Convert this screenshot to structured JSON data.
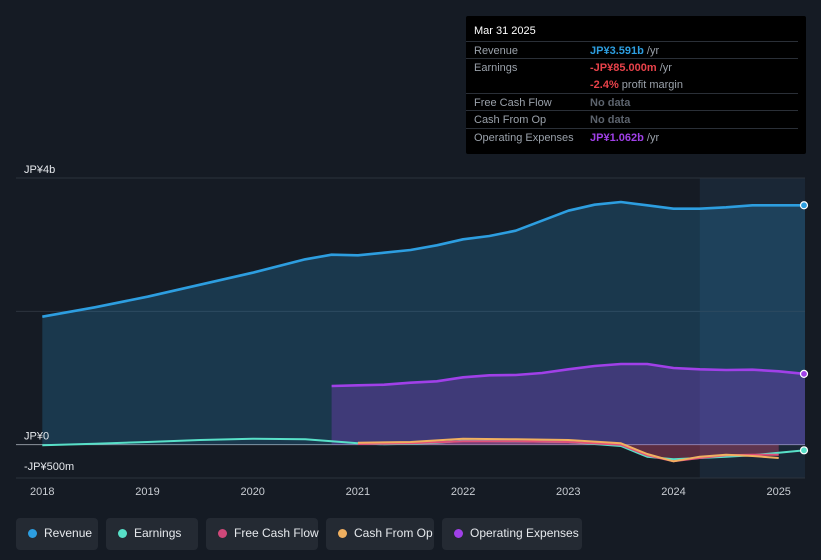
{
  "chart_data": {
    "type": "area",
    "y_unit_labels": {
      "top": "JP¥4b",
      "zero": "JP¥0",
      "bottom": "-JP¥500m"
    },
    "ylim": [
      -500,
      4000
    ],
    "xlim": [
      2017.75,
      2025.25
    ],
    "x_ticks": [
      "2018",
      "2019",
      "2020",
      "2021",
      "2022",
      "2023",
      "2024",
      "2025"
    ],
    "highlight_from": 2024.25,
    "series": [
      {
        "name": "Revenue",
        "color": "#2d9ee0",
        "points": [
          [
            2018,
            1920
          ],
          [
            2018.5,
            2060
          ],
          [
            2019,
            2220
          ],
          [
            2019.5,
            2400
          ],
          [
            2020,
            2580
          ],
          [
            2020.5,
            2780
          ],
          [
            2020.75,
            2850
          ],
          [
            2021,
            2840
          ],
          [
            2021.25,
            2880
          ],
          [
            2021.5,
            2920
          ],
          [
            2021.75,
            2990
          ],
          [
            2022,
            3080
          ],
          [
            2022.25,
            3130
          ],
          [
            2022.5,
            3210
          ],
          [
            2022.75,
            3360
          ],
          [
            2023,
            3510
          ],
          [
            2023.25,
            3600
          ],
          [
            2023.5,
            3640
          ],
          [
            2023.75,
            3590
          ],
          [
            2024,
            3540
          ],
          [
            2024.25,
            3540
          ],
          [
            2024.5,
            3560
          ],
          [
            2024.75,
            3590
          ],
          [
            2025,
            3590
          ],
          [
            2025.25,
            3591
          ]
        ]
      },
      {
        "name": "Operating Expenses",
        "color": "#a040e8",
        "points": [
          [
            2020.75,
            880
          ],
          [
            2021,
            890
          ],
          [
            2021.25,
            900
          ],
          [
            2021.5,
            930
          ],
          [
            2021.75,
            950
          ],
          [
            2022,
            1010
          ],
          [
            2022.25,
            1040
          ],
          [
            2022.5,
            1045
          ],
          [
            2022.75,
            1075
          ],
          [
            2023,
            1130
          ],
          [
            2023.25,
            1180
          ],
          [
            2023.5,
            1210
          ],
          [
            2023.75,
            1210
          ],
          [
            2024,
            1150
          ],
          [
            2024.25,
            1130
          ],
          [
            2024.5,
            1120
          ],
          [
            2024.75,
            1125
          ],
          [
            2025,
            1100
          ],
          [
            2025.25,
            1062
          ]
        ]
      },
      {
        "name": "Earnings",
        "color": "#58e0c8",
        "points": [
          [
            2018,
            -10
          ],
          [
            2018.5,
            15
          ],
          [
            2019,
            40
          ],
          [
            2019.5,
            70
          ],
          [
            2020,
            90
          ],
          [
            2020.5,
            80
          ],
          [
            2021,
            20
          ],
          [
            2021.25,
            5
          ],
          [
            2021.5,
            15
          ],
          [
            2021.75,
            30
          ],
          [
            2022,
            60
          ],
          [
            2022.5,
            50
          ],
          [
            2023,
            40
          ],
          [
            2023.5,
            -20
          ],
          [
            2023.75,
            -180
          ],
          [
            2024,
            -220
          ],
          [
            2024.25,
            -200
          ],
          [
            2024.5,
            -180
          ],
          [
            2024.75,
            -160
          ],
          [
            2025,
            -120
          ],
          [
            2025.25,
            -85
          ]
        ]
      },
      {
        "name": "Free Cash Flow",
        "color": "#e0507a",
        "points": [
          [
            2021,
            10
          ],
          [
            2021.5,
            20
          ],
          [
            2022,
            50
          ],
          [
            2022.5,
            50
          ],
          [
            2023,
            40
          ],
          [
            2023.5,
            0
          ],
          [
            2023.75,
            -160
          ],
          [
            2024,
            -250
          ],
          [
            2024.25,
            -200
          ],
          [
            2024.5,
            -160
          ],
          [
            2024.75,
            -150
          ],
          [
            2025,
            -150
          ]
        ]
      },
      {
        "name": "Cash From Op",
        "color": "#f0b060",
        "points": [
          [
            2021,
            30
          ],
          [
            2021.5,
            40
          ],
          [
            2022,
            90
          ],
          [
            2022.5,
            80
          ],
          [
            2023,
            70
          ],
          [
            2023.5,
            20
          ],
          [
            2023.75,
            -140
          ],
          [
            2024,
            -250
          ],
          [
            2024.25,
            -180
          ],
          [
            2024.5,
            -150
          ],
          [
            2024.75,
            -170
          ],
          [
            2025,
            -200
          ]
        ]
      }
    ]
  },
  "tooltip": {
    "date": "Mar 31 2025",
    "rows": [
      {
        "label": "Revenue",
        "value": "JP¥3.591b",
        "unit": " /yr",
        "color": "#2d9ee0"
      },
      {
        "label": "Earnings",
        "value": "-JP¥85.000m",
        "unit": " /yr",
        "color": "#e8424a"
      },
      {
        "label": "",
        "value": "-2.4%",
        "unit": " profit margin",
        "color": "#e8424a"
      },
      {
        "label": "Free Cash Flow",
        "value": "No data",
        "unit": "",
        "color": "#5c636d"
      },
      {
        "label": "Cash From Op",
        "value": "No data",
        "unit": "",
        "color": "#5c636d"
      },
      {
        "label": "Operating Expenses",
        "value": "JP¥1.062b",
        "unit": " /yr",
        "color": "#a040e8"
      }
    ]
  },
  "legend": [
    {
      "label": "Revenue",
      "color": "#2d9ee0"
    },
    {
      "label": "Earnings",
      "color": "#58e0c8"
    },
    {
      "label": "Free Cash Flow",
      "color": "#d0487a"
    },
    {
      "label": "Cash From Op",
      "color": "#f0b060"
    },
    {
      "label": "Operating Expenses",
      "color": "#a040e8"
    }
  ]
}
